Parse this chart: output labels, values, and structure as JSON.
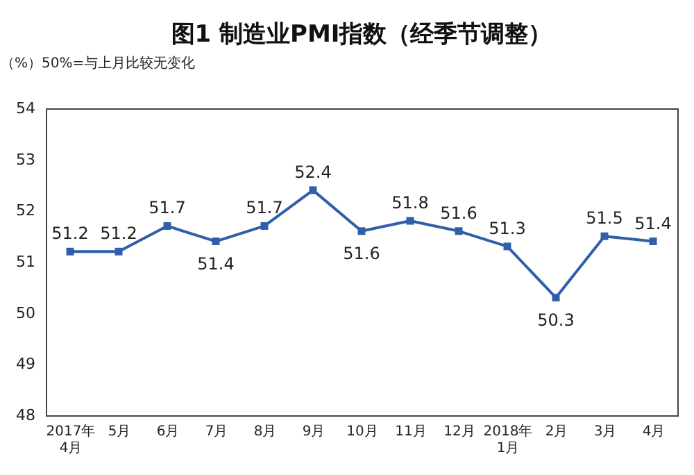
{
  "chart_data": {
    "type": "line",
    "title": "图1 制造业PMI指数（经季节调整）",
    "ylabel": "（%）50%=与上月比较无变化",
    "categories": [
      "2017年\n4月",
      "5月",
      "6月",
      "7月",
      "8月",
      "9月",
      "10月",
      "11月",
      "12月",
      "2018年\n1月",
      "2月",
      "3月",
      "4月"
    ],
    "series": [
      {
        "color": "#2e5fa8",
        "values": [
          51.2,
          51.2,
          51.7,
          51.4,
          51.7,
          52.4,
          51.6,
          51.8,
          51.6,
          51.3,
          50.3,
          51.5,
          51.4
        ]
      }
    ],
    "ylim": [
      48,
      54
    ],
    "yticks": [
      48,
      49,
      50,
      51,
      52,
      53,
      54
    ],
    "grid": false,
    "marker": "square",
    "line_style": "solid",
    "data_labels": true
  }
}
